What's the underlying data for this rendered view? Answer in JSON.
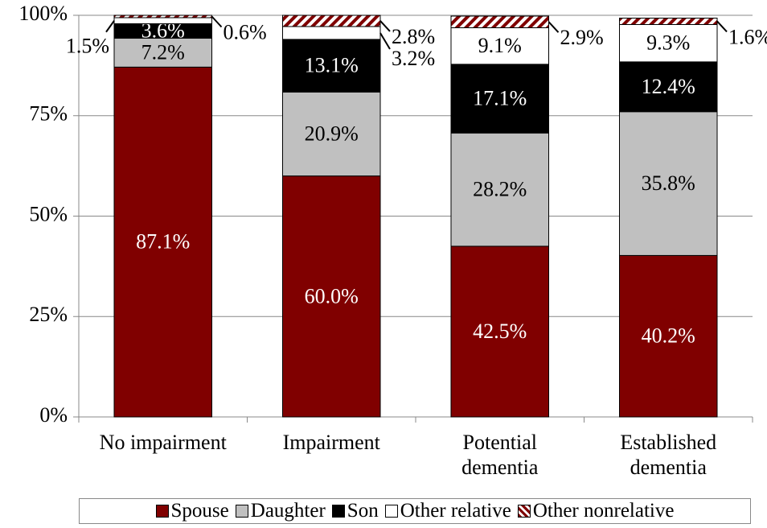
{
  "chart_data": {
    "type": "stacked_bar",
    "categories": [
      "No impairment",
      "Impairment",
      "Potential\ndementia",
      "Established\ndementia"
    ],
    "series": [
      {
        "name": "Spouse",
        "color": "#800000",
        "values": [
          87.1,
          60.0,
          42.5,
          40.2
        ],
        "value_labels": [
          "87.1%",
          "60.0%",
          "42.5%",
          "40.2%"
        ]
      },
      {
        "name": "Daughter",
        "color": "#c0c0c0",
        "values": [
          7.2,
          20.9,
          28.2,
          35.8
        ],
        "value_labels": [
          "7.2%",
          "20.9%",
          "28.2%",
          "35.8%"
        ]
      },
      {
        "name": "Son",
        "color": "#000000",
        "values": [
          3.6,
          13.1,
          17.1,
          12.4
        ],
        "value_labels": [
          "3.6%",
          "13.1%",
          "17.1%",
          "12.4%"
        ]
      },
      {
        "name": "Other relative",
        "color": "#ffffff",
        "values": [
          1.5,
          3.2,
          9.1,
          9.3
        ],
        "value_labels": [
          "1.5%",
          "3.2%",
          "9.1%",
          "9.3%"
        ]
      },
      {
        "name": "Other nonrelative",
        "color": "#800000",
        "hatch": true,
        "values": [
          0.6,
          2.8,
          2.9,
          1.6
        ],
        "value_labels": [
          "0.6%",
          "2.8%",
          "2.9%",
          "1.6%"
        ]
      }
    ],
    "ylim": [
      0,
      100
    ],
    "yticks": [
      {
        "value": 0,
        "label": "0%"
      },
      {
        "value": 25,
        "label": "25%"
      },
      {
        "value": 50,
        "label": "50%"
      },
      {
        "value": 75,
        "label": "75%"
      },
      {
        "value": 100,
        "label": "100%"
      }
    ],
    "grid": true,
    "legend": "bottom"
  }
}
